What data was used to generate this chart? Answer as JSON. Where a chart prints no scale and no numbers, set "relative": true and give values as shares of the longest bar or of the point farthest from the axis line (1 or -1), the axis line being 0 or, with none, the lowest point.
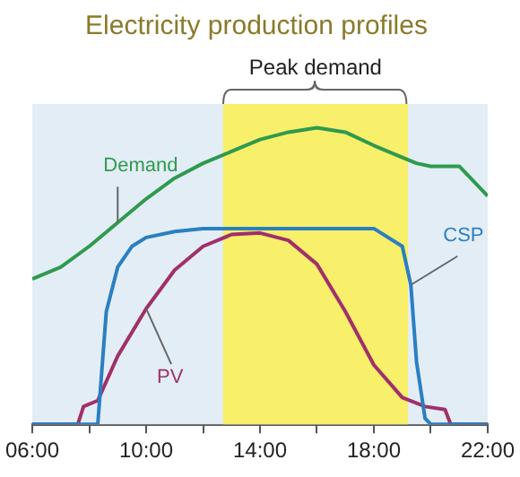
{
  "chart_data": {
    "type": "line",
    "title": "Electricity production profiles",
    "relative": true,
    "xlim": [
      6,
      22
    ],
    "xticks": [
      {
        "value": 6,
        "label": "06:00"
      },
      {
        "value": 8,
        "label": null
      },
      {
        "value": 10,
        "label": "10:00"
      },
      {
        "value": 12,
        "label": null
      },
      {
        "value": 14,
        "label": "14:00"
      },
      {
        "value": 16,
        "label": null
      },
      {
        "value": 18,
        "label": "18:00"
      },
      {
        "value": 20,
        "label": null
      },
      {
        "value": 22,
        "label": "22:00"
      }
    ],
    "series": [
      {
        "name": "Demand",
        "color": "#2e9a4e",
        "x": [
          6,
          7,
          8,
          9,
          10,
          11,
          12,
          13,
          14,
          15,
          16,
          17,
          18,
          19,
          19.5,
          20,
          21,
          22
        ],
        "values": [
          0.49,
          0.53,
          0.6,
          0.68,
          0.76,
          0.83,
          0.88,
          0.92,
          0.96,
          0.985,
          1,
          0.985,
          0.94,
          0.9,
          0.88,
          0.87,
          0.87,
          0.77
        ]
      },
      {
        "name": "CSP",
        "color": "#2a7fc0",
        "x": [
          6,
          8.3,
          8.6,
          9,
          9.5,
          10,
          11,
          12,
          13,
          14,
          15,
          16,
          17,
          18,
          19,
          19.3,
          19.5,
          19.8,
          20,
          22
        ],
        "values": [
          0,
          0,
          0.38,
          0.53,
          0.6,
          0.63,
          0.65,
          0.66,
          0.66,
          0.66,
          0.66,
          0.66,
          0.66,
          0.66,
          0.6,
          0.47,
          0.21,
          0.02,
          0,
          0
        ]
      },
      {
        "name": "PV",
        "color": "#a0306a",
        "x": [
          6,
          7.6,
          7.8,
          8.3,
          9,
          10,
          11,
          12,
          13,
          14,
          15,
          16,
          17,
          18,
          19,
          19.8,
          20.5,
          20.7,
          22
        ],
        "values": [
          0,
          0,
          0.06,
          0.08,
          0.23,
          0.39,
          0.52,
          0.6,
          0.64,
          0.645,
          0.62,
          0.54,
          0.38,
          0.2,
          0.09,
          0.06,
          0.05,
          0,
          0
        ]
      }
    ],
    "bands": [
      {
        "axis": "x",
        "from": 12.7,
        "to": 19.2,
        "label": "Peak demand",
        "color": "#f8ef6a"
      }
    ],
    "grid": false,
    "legend": false,
    "marker": "none",
    "line_style": "solid"
  }
}
